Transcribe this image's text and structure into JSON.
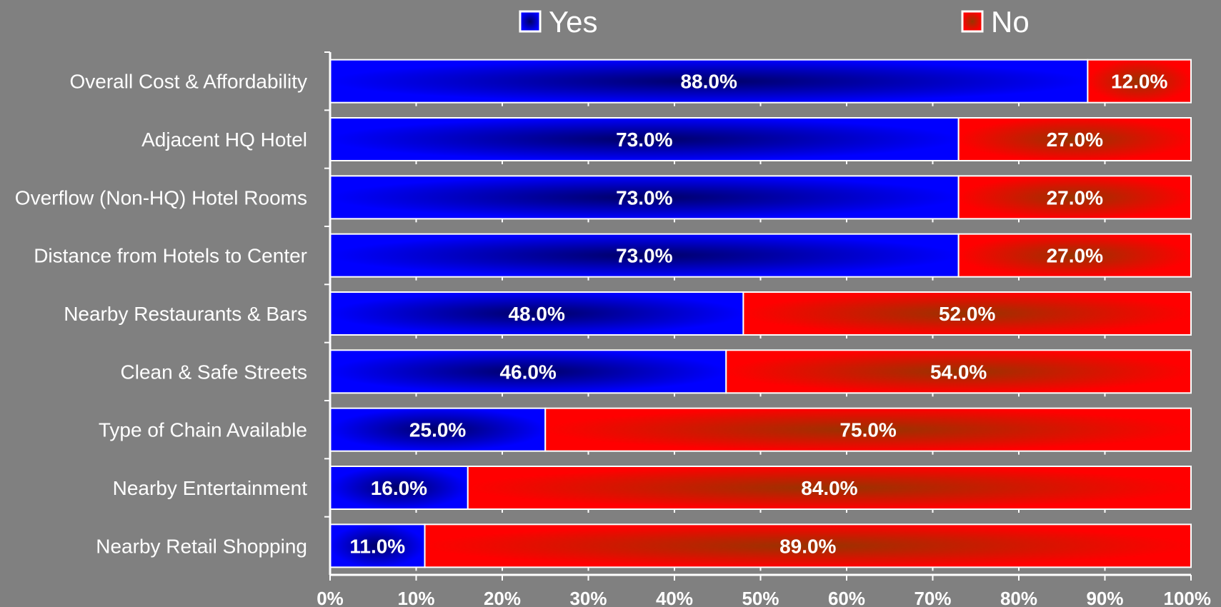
{
  "chart_data": {
    "type": "bar",
    "orientation": "horizontal",
    "stacked": true,
    "categories": [
      "Overall Cost & Affordability",
      "Adjacent HQ Hotel",
      "Overflow (Non-HQ) Hotel Rooms",
      "Distance from Hotels to Center",
      "Nearby Restaurants & Bars",
      "Clean & Safe Streets",
      "Type of Chain Available",
      "Nearby Entertainment",
      "Nearby Retail Shopping"
    ],
    "series": [
      {
        "name": "Yes",
        "color": "#0000ff",
        "values": [
          88.0,
          73.0,
          73.0,
          73.0,
          48.0,
          46.0,
          25.0,
          16.0,
          11.0
        ],
        "labels": [
          "88.0%",
          "73.0%",
          "73.0%",
          "73.0%",
          "48.0%",
          "46.0%",
          "25.0%",
          "16.0%",
          "11.0%"
        ]
      },
      {
        "name": "No",
        "color": "#ff0000",
        "values": [
          12.0,
          27.0,
          27.0,
          27.0,
          52.0,
          54.0,
          75.0,
          84.0,
          89.0
        ],
        "labels": [
          "12.0%",
          "27.0%",
          "27.0%",
          "27.0%",
          "52.0%",
          "54.0%",
          "75.0%",
          "84.0%",
          "89.0%"
        ]
      }
    ],
    "xlim": [
      0,
      100
    ],
    "x_ticks": [
      "0%",
      "10%",
      "20%",
      "30%",
      "40%",
      "50%",
      "60%",
      "70%",
      "80%",
      "90%",
      "100%"
    ],
    "legend_position": "top",
    "grid": false,
    "background": "#808080"
  }
}
